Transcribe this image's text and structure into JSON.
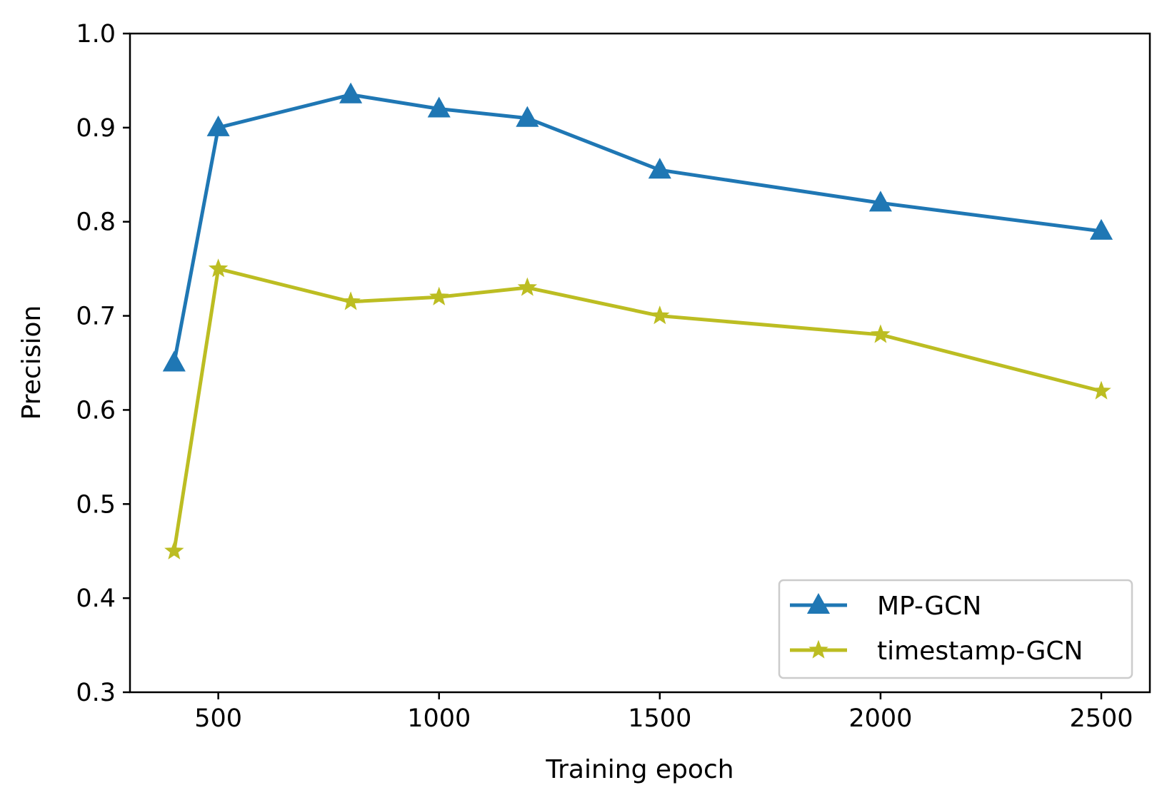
{
  "chart_data": {
    "type": "line",
    "title": "",
    "xlabel": "Training epoch",
    "ylabel": "Precision",
    "xlim": [
      300,
      2610
    ],
    "ylim": [
      0.3,
      1.0
    ],
    "x_ticks": [
      500,
      1000,
      1500,
      2000,
      2500
    ],
    "x_tick_labels": [
      "500",
      "1000",
      "1500",
      "2000",
      "2500"
    ],
    "y_ticks": [
      0.3,
      0.4,
      0.5,
      0.6,
      0.7,
      0.8,
      0.9,
      1.0
    ],
    "y_tick_labels": [
      "0.3",
      "0.4",
      "0.5",
      "0.6",
      "0.7",
      "0.8",
      "0.9",
      "1.0"
    ],
    "grid": false,
    "legend_position": "bottom-right",
    "x": [
      400,
      500,
      800,
      1000,
      1200,
      1500,
      2000,
      2500
    ],
    "series": [
      {
        "name": "MP-GCN",
        "color": "#1f77b4",
        "marker": "triangle",
        "values": [
          0.65,
          0.9,
          0.935,
          0.92,
          0.91,
          0.855,
          0.82,
          0.79
        ]
      },
      {
        "name": "timestamp-GCN",
        "color": "#bcbd22",
        "marker": "star",
        "values": [
          0.45,
          0.75,
          0.715,
          0.72,
          0.73,
          0.7,
          0.68,
          0.62
        ]
      }
    ]
  }
}
